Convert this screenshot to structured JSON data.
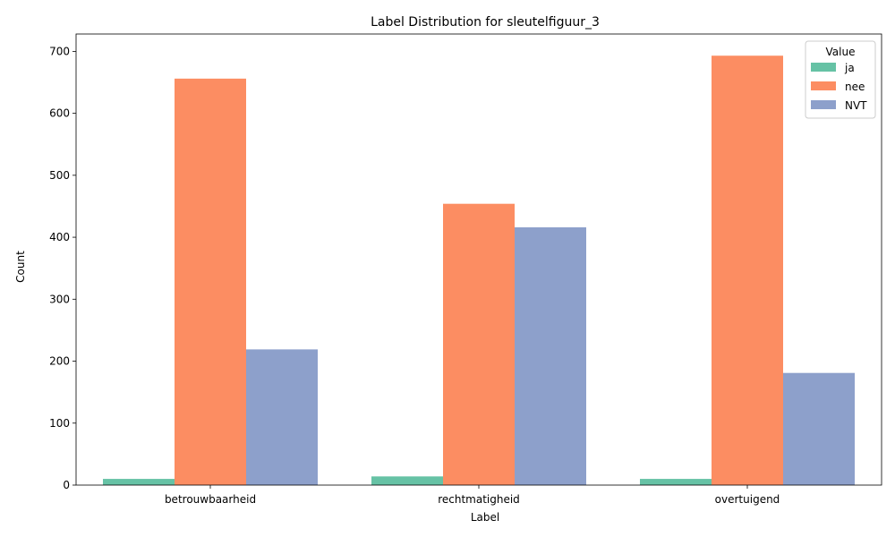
{
  "chart_data": {
    "type": "bar",
    "title": "Label Distribution for sleutelfiguur_3",
    "xlabel": "Label",
    "ylabel": "Count",
    "categories": [
      "betrouwbaarheid",
      "rechtmatigheid",
      "overtuigend"
    ],
    "series": [
      {
        "name": "ja",
        "color": "#66c2a5",
        "values": [
          10,
          14,
          10
        ]
      },
      {
        "name": "nee",
        "color": "#fc8d62",
        "values": [
          656,
          454,
          693
        ]
      },
      {
        "name": "NVT",
        "color": "#8da0cb",
        "values": [
          219,
          416,
          181
        ]
      }
    ],
    "ylim": [
      0,
      728
    ],
    "yticks": [
      0,
      100,
      200,
      300,
      400,
      500,
      600,
      700
    ],
    "grid": false,
    "legend": {
      "title": "Value",
      "placement": "top-right"
    }
  }
}
